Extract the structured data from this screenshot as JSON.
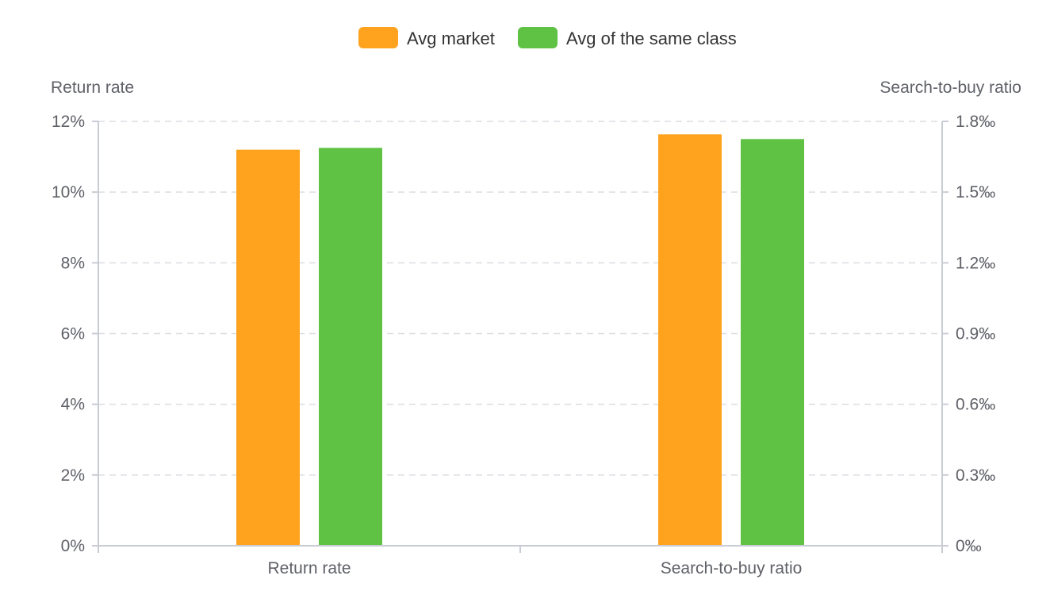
{
  "chart_data": {
    "type": "bar",
    "categories": [
      "Return rate",
      "Search-to-buy ratio"
    ],
    "series": [
      {
        "name": "Avg market",
        "color": "#ffa31f",
        "values": [
          11.2,
          1.745
        ]
      },
      {
        "name": "Avg of the same class",
        "color": "#5fc244",
        "values": [
          11.25,
          1.725
        ]
      }
    ],
    "axes": {
      "left": {
        "name": "Return rate",
        "range": [
          0,
          12
        ],
        "ticks": [
          "0%",
          "2%",
          "4%",
          "6%",
          "8%",
          "10%",
          "12%"
        ]
      },
      "right": {
        "name": "Search-to-buy ratio",
        "range": [
          0,
          1.8
        ],
        "ticks": [
          "0‰",
          "0.3‰",
          "0.6‰",
          "0.9‰",
          "1.2‰",
          "1.5‰",
          "1.8‰"
        ]
      }
    },
    "series_axis": [
      "left",
      "right"
    ],
    "grid": true,
    "legend_position": "top-center"
  }
}
